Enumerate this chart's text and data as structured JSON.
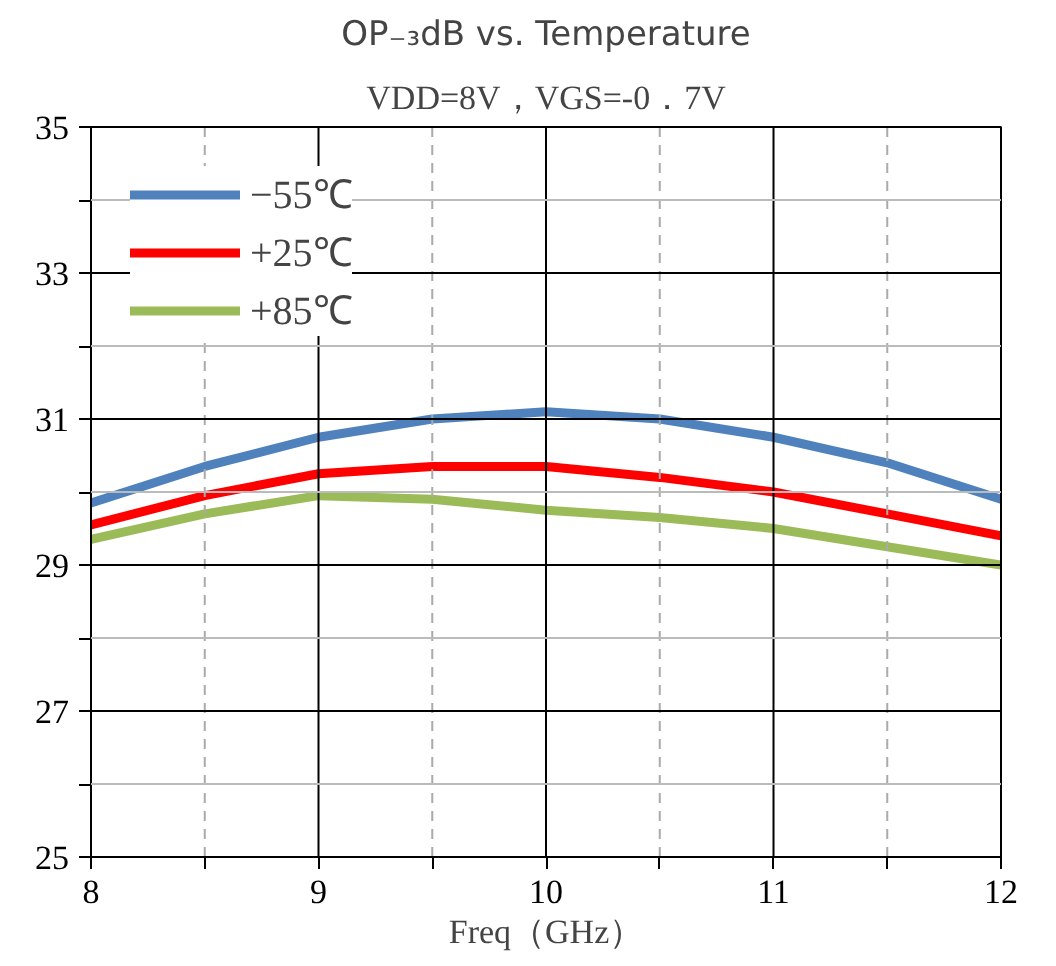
{
  "chart_data": {
    "type": "line",
    "title": "OP₋₃dB vs. Temperature",
    "subtitle": "VDD=8V，VGS=-0．7V",
    "xlabel": "Freq（GHz）",
    "x": [
      8,
      8.5,
      9,
      9.5,
      10,
      10.5,
      11,
      11.5,
      12
    ],
    "series": [
      {
        "name": "−55℃",
        "color": "#4f81bd",
        "values": [
          29.85,
          30.35,
          30.75,
          31.0,
          31.1,
          31.0,
          30.75,
          30.4,
          29.9
        ]
      },
      {
        "name": "+25℃",
        "color": "#ff0000",
        "values": [
          29.55,
          29.95,
          30.25,
          30.35,
          30.35,
          30.2,
          30.0,
          29.7,
          29.4
        ]
      },
      {
        "name": "+85℃",
        "color": "#9bbb59",
        "values": [
          29.35,
          29.7,
          29.95,
          29.9,
          29.75,
          29.65,
          29.5,
          29.25,
          29.0
        ]
      }
    ],
    "xlim": [
      8,
      12
    ],
    "ylim": [
      25,
      35
    ],
    "xticks": [
      8,
      {
        "value": 8.5,
        "label": null
      },
      9,
      {
        "value": 9.5,
        "label": null
      },
      10,
      {
        "value": 10.5,
        "label": null
      },
      11,
      {
        "value": 11.5,
        "label": null
      },
      12
    ],
    "yticks": [
      25,
      {
        "value": 26,
        "label": null
      },
      27,
      {
        "value": 28,
        "label": null
      },
      29,
      {
        "value": 30,
        "label": null
      },
      31,
      {
        "value": 32,
        "label": null
      },
      33,
      {
        "value": 34,
        "label": null
      },
      35
    ],
    "grid": true,
    "legend": "top left",
    "marker": "none",
    "line_style": "solid"
  }
}
